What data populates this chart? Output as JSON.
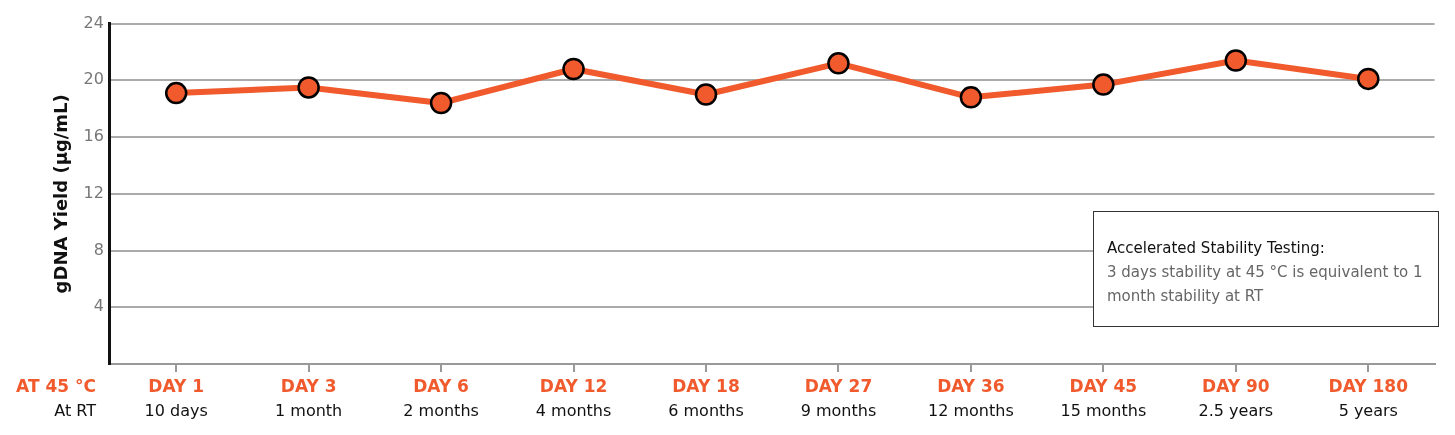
{
  "chart_data": {
    "type": "line",
    "ylabel": "gDNA Yield (µg/mL)",
    "categories": [
      "DAY 1\n10 days",
      "DAY 3\n1 month",
      "DAY 6\n2 months",
      "DAY 12\n4 months",
      "DAY 18\n6 months",
      "DAY 27\n9 months",
      "DAY 36\n12 months",
      "DAY 45\n15 months",
      "DAY 90\n2.5 years",
      "DAY 180\n5 years"
    ],
    "series": [
      {
        "color": "#f05a2c",
        "values": [
          19.1,
          19.5,
          18.4,
          20.8,
          19.0,
          21.2,
          18.8,
          19.7,
          21.4,
          20.1
        ]
      }
    ],
    "ylim": [
      0,
      24
    ],
    "yticks": [
      4,
      8,
      12,
      16,
      20,
      24
    ],
    "grid": "y",
    "legend": false,
    "marker": "circle",
    "line_style": "solid",
    "annotations": [
      "AT 45 °C",
      "At RT",
      "Accelerated Stability Testing:",
      "3 days stability at 45 °C is equivalent to 1 month stability at RT"
    ]
  }
}
